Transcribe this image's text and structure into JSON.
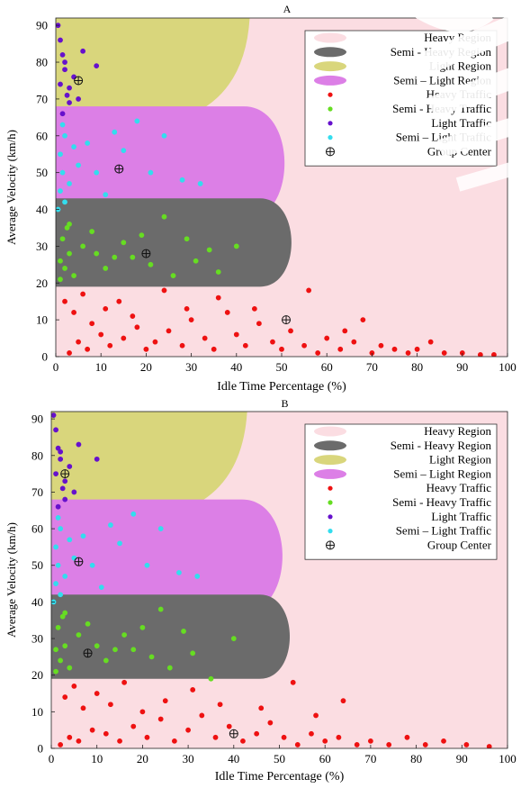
{
  "chart_data": [
    {
      "type": "scatter",
      "title": "A",
      "xlabel": "Idle Time Percentage (%)",
      "ylabel": "Average Velocity (km/h)",
      "xlim": [
        0,
        100
      ],
      "ylim": [
        0,
        92
      ],
      "x_ticks": [
        0,
        10,
        20,
        30,
        40,
        50,
        60,
        70,
        80,
        90,
        100
      ],
      "y_ticks": [
        0,
        10,
        20,
        30,
        40,
        50,
        60,
        70,
        80,
        90
      ],
      "legend_position": "top-right",
      "legend": [
        {
          "label": "Heavy Region",
          "kind": "region",
          "color": "#fbdde2"
        },
        {
          "label": "Semi - Heavy Region",
          "kind": "region",
          "color": "#6b6b6b"
        },
        {
          "label": "Light Region",
          "kind": "region",
          "color": "#d9d67c"
        },
        {
          "label": "Semi – Light Region",
          "kind": "region",
          "color": "#dc7fe6"
        },
        {
          "label": "Heavy Traffic",
          "kind": "point",
          "color": "#ee1111"
        },
        {
          "label": "Semi - Heavy Traffic",
          "kind": "point",
          "color": "#66dd22"
        },
        {
          "label": "Light Traffic",
          "kind": "point",
          "color": "#6611cc"
        },
        {
          "label": "Semi – Light Traffic",
          "kind": "point",
          "color": "#33ddee"
        },
        {
          "label": "Group Center",
          "kind": "center",
          "color": "#111111"
        }
      ],
      "regions": {
        "heavy": {
          "y_max": 20
        },
        "semi_heavy": {
          "y_min": 19,
          "y_max": 43,
          "x_max": 54
        },
        "semi_light": {
          "y_min": 37,
          "y_max": 68,
          "x_max": 53
        },
        "light": {
          "y_min": 63,
          "y_max": 92,
          "x_max": 43
        }
      },
      "group_centers": [
        {
          "group": "Heavy Traffic",
          "x": 51,
          "y": 10
        },
        {
          "group": "Semi - Heavy Traffic",
          "x": 20,
          "y": 28
        },
        {
          "group": "Semi – Light Traffic",
          "x": 14,
          "y": 51
        },
        {
          "group": "Light Traffic",
          "x": 5,
          "y": 75
        }
      ],
      "series": [
        {
          "name": "Heavy Traffic",
          "color": "#ee1111",
          "points": [
            [
              3,
              1
            ],
            [
              5,
              4
            ],
            [
              7,
              2
            ],
            [
              10,
              6
            ],
            [
              12,
              3
            ],
            [
              15,
              5
            ],
            [
              18,
              8
            ],
            [
              20,
              2
            ],
            [
              22,
              4
            ],
            [
              25,
              7
            ],
            [
              28,
              3
            ],
            [
              30,
              10
            ],
            [
              33,
              5
            ],
            [
              35,
              2
            ],
            [
              38,
              12
            ],
            [
              40,
              6
            ],
            [
              42,
              3
            ],
            [
              45,
              9
            ],
            [
              48,
              4
            ],
            [
              50,
              2
            ],
            [
              52,
              7
            ],
            [
              55,
              3
            ],
            [
              58,
              1
            ],
            [
              60,
              5
            ],
            [
              63,
              2
            ],
            [
              66,
              4
            ],
            [
              70,
              1
            ],
            [
              72,
              3
            ],
            [
              75,
              2
            ],
            [
              78,
              1
            ],
            [
              80,
              2
            ],
            [
              83,
              4
            ],
            [
              86,
              1
            ],
            [
              90,
              1
            ],
            [
              94,
              0.5
            ],
            [
              97,
              0.5
            ],
            [
              2,
              15
            ],
            [
              4,
              12
            ],
            [
              6,
              17
            ],
            [
              8,
              9
            ],
            [
              11,
              13
            ],
            [
              14,
              15
            ],
            [
              17,
              11
            ],
            [
              24,
              18
            ],
            [
              29,
              13
            ],
            [
              36,
              16
            ],
            [
              44,
              13
            ],
            [
              56,
              18
            ],
            [
              64,
              7
            ],
            [
              68,
              10
            ]
          ]
        },
        {
          "name": "Semi - Heavy Traffic",
          "color": "#66dd22",
          "points": [
            [
              1,
              21
            ],
            [
              2,
              24
            ],
            [
              3,
              28
            ],
            [
              1.5,
              32
            ],
            [
              2.5,
              35
            ],
            [
              4,
              22
            ],
            [
              6,
              30
            ],
            [
              8,
              34
            ],
            [
              9,
              28
            ],
            [
              11,
              24
            ],
            [
              13,
              27
            ],
            [
              15,
              31
            ],
            [
              17,
              27
            ],
            [
              19,
              33
            ],
            [
              21,
              25
            ],
            [
              24,
              38
            ],
            [
              26,
              22
            ],
            [
              29,
              32
            ],
            [
              31,
              26
            ],
            [
              34,
              29
            ],
            [
              36,
              23
            ],
            [
              40,
              30
            ],
            [
              1,
              26
            ],
            [
              3,
              36
            ]
          ]
        },
        {
          "name": "Light Traffic",
          "color": "#6611cc",
          "points": [
            [
              0.5,
              90
            ],
            [
              1,
              86
            ],
            [
              1.5,
              82
            ],
            [
              2,
              78
            ],
            [
              1,
              74
            ],
            [
              2.5,
              71
            ],
            [
              3,
              69
            ],
            [
              1.5,
              66
            ],
            [
              4,
              76
            ],
            [
              6,
              83
            ],
            [
              9,
              79
            ],
            [
              3,
              73
            ],
            [
              2,
              80
            ],
            [
              5,
              70
            ]
          ]
        },
        {
          "name": "Semi – Light Traffic",
          "color": "#33ddee",
          "points": [
            [
              0.5,
              40
            ],
            [
              1,
              45
            ],
            [
              1.5,
              50
            ],
            [
              1,
              55
            ],
            [
              2,
              60
            ],
            [
              1.5,
              63
            ],
            [
              3,
              47
            ],
            [
              5,
              52
            ],
            [
              7,
              58
            ],
            [
              9,
              50
            ],
            [
              11,
              44
            ],
            [
              13,
              61
            ],
            [
              15,
              56
            ],
            [
              18,
              64
            ],
            [
              21,
              50
            ],
            [
              24,
              60
            ],
            [
              28,
              48
            ],
            [
              32,
              47
            ],
            [
              2,
              42
            ],
            [
              4,
              57
            ]
          ]
        }
      ]
    },
    {
      "type": "scatter",
      "title": "B",
      "xlabel": "Idle Time Percentage (%)",
      "ylabel": "Average Velocity (km/h)",
      "xlim": [
        0,
        100
      ],
      "ylim": [
        0,
        92
      ],
      "x_ticks": [
        0,
        10,
        20,
        30,
        40,
        50,
        60,
        70,
        80,
        90,
        100
      ],
      "y_ticks": [
        0,
        10,
        20,
        30,
        40,
        50,
        60,
        70,
        80,
        90
      ],
      "legend_position": "top-right",
      "legend": [
        {
          "label": "Heavy Region",
          "kind": "region",
          "color": "#fbdde2"
        },
        {
          "label": "Semi - Heavy Region",
          "kind": "region",
          "color": "#6b6b6b"
        },
        {
          "label": "Light Region",
          "kind": "region",
          "color": "#d9d67c"
        },
        {
          "label": "Semi – Light Region",
          "kind": "region",
          "color": "#dc7fe6"
        },
        {
          "label": "Heavy Traffic",
          "kind": "point",
          "color": "#ee1111"
        },
        {
          "label": "Semi - Heavy Traffic",
          "kind": "point",
          "color": "#66dd22"
        },
        {
          "label": "Light Traffic",
          "kind": "point",
          "color": "#6611cc"
        },
        {
          "label": "Semi – Light Traffic",
          "kind": "point",
          "color": "#33ddee"
        },
        {
          "label": "Group Center",
          "kind": "center",
          "color": "#111111"
        }
      ],
      "regions": {
        "heavy": {
          "y_max": 20
        },
        "semi_heavy": {
          "y_min": 19,
          "y_max": 42,
          "x_max": 54
        },
        "semi_light": {
          "y_min": 37,
          "y_max": 68,
          "x_max": 53
        },
        "light": {
          "y_min": 63,
          "y_max": 92,
          "x_max": 43
        }
      },
      "group_centers": [
        {
          "group": "Heavy Traffic",
          "x": 40,
          "y": 4
        },
        {
          "group": "Semi - Heavy Traffic",
          "x": 8,
          "y": 26
        },
        {
          "group": "Semi – Light Traffic",
          "x": 6,
          "y": 51
        },
        {
          "group": "Light Traffic",
          "x": 3,
          "y": 75
        }
      ],
      "series": [
        {
          "name": "Heavy Traffic",
          "color": "#ee1111",
          "points": [
            [
              2,
              1
            ],
            [
              4,
              3
            ],
            [
              6,
              2
            ],
            [
              9,
              5
            ],
            [
              12,
              4
            ],
            [
              15,
              2
            ],
            [
              18,
              6
            ],
            [
              21,
              3
            ],
            [
              24,
              8
            ],
            [
              27,
              2
            ],
            [
              30,
              5
            ],
            [
              33,
              9
            ],
            [
              36,
              3
            ],
            [
              39,
              6
            ],
            [
              42,
              2
            ],
            [
              45,
              4
            ],
            [
              48,
              7
            ],
            [
              51,
              3
            ],
            [
              54,
              1
            ],
            [
              57,
              4
            ],
            [
              60,
              2
            ],
            [
              63,
              3
            ],
            [
              67,
              1
            ],
            [
              70,
              2
            ],
            [
              74,
              1
            ],
            [
              78,
              3
            ],
            [
              82,
              1
            ],
            [
              86,
              2
            ],
            [
              91,
              1
            ],
            [
              96,
              0.5
            ],
            [
              3,
              14
            ],
            [
              5,
              17
            ],
            [
              7,
              11
            ],
            [
              10,
              15
            ],
            [
              13,
              12
            ],
            [
              16,
              18
            ],
            [
              20,
              10
            ],
            [
              25,
              13
            ],
            [
              31,
              16
            ],
            [
              37,
              12
            ],
            [
              46,
              11
            ],
            [
              53,
              18
            ],
            [
              58,
              9
            ],
            [
              64,
              13
            ]
          ]
        },
        {
          "name": "Semi - Heavy Traffic",
          "color": "#66dd22",
          "points": [
            [
              1,
              21
            ],
            [
              2,
              24
            ],
            [
              3,
              28
            ],
            [
              1.5,
              33
            ],
            [
              2.5,
              36
            ],
            [
              4,
              22
            ],
            [
              6,
              31
            ],
            [
              8,
              34
            ],
            [
              10,
              28
            ],
            [
              12,
              24
            ],
            [
              14,
              27
            ],
            [
              16,
              31
            ],
            [
              18,
              27
            ],
            [
              20,
              33
            ],
            [
              22,
              25
            ],
            [
              24,
              38
            ],
            [
              26,
              22
            ],
            [
              29,
              32
            ],
            [
              31,
              26
            ],
            [
              35,
              19
            ],
            [
              40,
              30
            ],
            [
              1,
              27
            ],
            [
              3,
              37
            ]
          ]
        },
        {
          "name": "Light Traffic",
          "color": "#6611cc",
          "points": [
            [
              0.5,
              91
            ],
            [
              1,
              87
            ],
            [
              1.5,
              82
            ],
            [
              2,
              79
            ],
            [
              1,
              75
            ],
            [
              2.5,
              71
            ],
            [
              3,
              68
            ],
            [
              1.5,
              66
            ],
            [
              4,
              77
            ],
            [
              6,
              83
            ],
            [
              10,
              79
            ],
            [
              3,
              73
            ],
            [
              2,
              81
            ],
            [
              5,
              70
            ]
          ]
        },
        {
          "name": "Semi – Light Traffic",
          "color": "#33ddee",
          "points": [
            [
              0.5,
              40
            ],
            [
              1,
              45
            ],
            [
              1.5,
              50
            ],
            [
              1,
              55
            ],
            [
              2,
              60
            ],
            [
              1.5,
              63
            ],
            [
              3,
              47
            ],
            [
              5,
              52
            ],
            [
              7,
              58
            ],
            [
              9,
              50
            ],
            [
              11,
              44
            ],
            [
              13,
              61
            ],
            [
              15,
              56
            ],
            [
              18,
              64
            ],
            [
              21,
              50
            ],
            [
              24,
              60
            ],
            [
              28,
              48
            ],
            [
              32,
              47
            ],
            [
              2,
              42
            ],
            [
              4,
              57
            ]
          ]
        }
      ]
    }
  ]
}
